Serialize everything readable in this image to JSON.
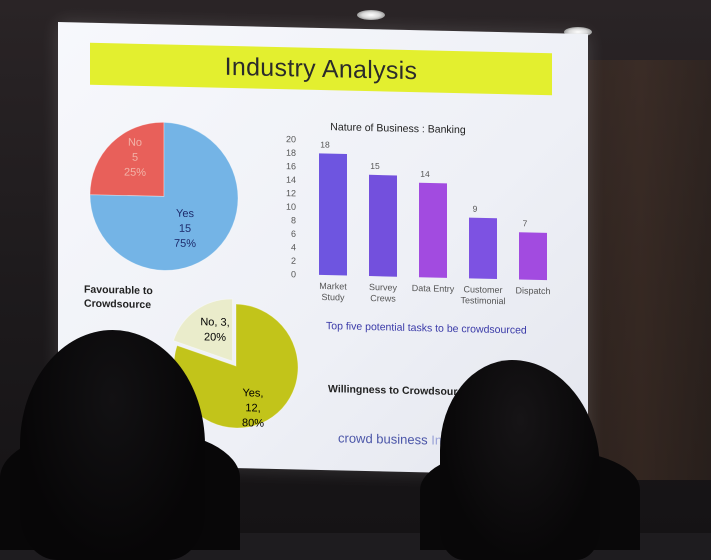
{
  "slide": {
    "title": "Industry Analysis",
    "footer_brand_main": "crowd business ",
    "footer_brand_faded": "Ind"
  },
  "chart_data": [
    {
      "type": "pie",
      "title": "Favourable to Crowdsource",
      "slices": [
        {
          "label": "No",
          "value": 5,
          "percent": "25%",
          "color": "#e8605a",
          "text_color": "#f2b3a8"
        },
        {
          "label": "Yes",
          "value": 15,
          "percent": "75%",
          "color": "#74b4e6",
          "text_color": "#1d2a6b"
        }
      ]
    },
    {
      "type": "bar",
      "title": "Nature of Business : Banking",
      "categories": [
        [
          "Market",
          "Study"
        ],
        [
          "Survey",
          "Crews"
        ],
        [
          "Data Entry"
        ],
        [
          "Customer",
          "Testimonial"
        ],
        [
          "Dispatch"
        ]
      ],
      "values": [
        18,
        15,
        14,
        9,
        7
      ],
      "ylim": [
        0,
        20
      ],
      "yticks": [
        0,
        2,
        4,
        6,
        8,
        10,
        12,
        14,
        16,
        18,
        20
      ],
      "colors": [
        "#6e55e0",
        "#7350dd",
        "#a24be0",
        "#7d52e2",
        "#a24be0"
      ],
      "caption": "Top five potential tasks to be crowdsourced",
      "grid": false,
      "legend": "none"
    },
    {
      "type": "pie",
      "title": "Willingness to Crowdsource",
      "slices": [
        {
          "label": "No, 3,",
          "value": 3,
          "percent": "20%",
          "color": "#eaeccb",
          "text_color": "#333"
        },
        {
          "label": "Yes,",
          "value": 12,
          "value_label": "12,",
          "percent": "80%",
          "color": "#c2c41a",
          "text_color": "#333"
        }
      ]
    }
  ]
}
